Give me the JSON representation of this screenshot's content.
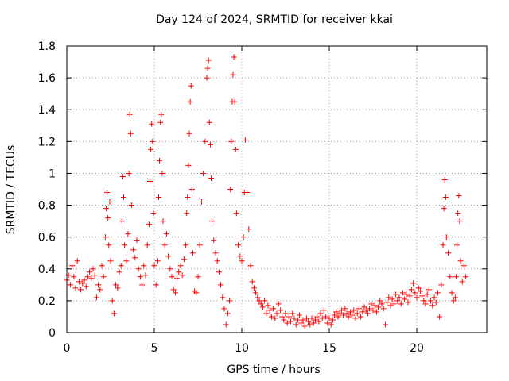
{
  "chart_data": {
    "type": "scatter",
    "title": "Day 124 of 2024, SRMTID for receiver kkai",
    "xlabel": "GPS time / hours",
    "ylabel": "SRMTID / TECUs",
    "xlim": [
      0,
      24
    ],
    "ylim": [
      0,
      1.8
    ],
    "x_ticks": [
      0,
      5,
      10,
      15,
      20
    ],
    "x_tick_labels": [
      "0",
      "5",
      "10",
      "15",
      "20"
    ],
    "y_ticks": [
      0,
      0.2,
      0.4,
      0.6,
      0.8,
      1,
      1.2,
      1.4,
      1.6,
      1.8
    ],
    "y_tick_labels": [
      "0",
      "0.2",
      "0.4",
      "0.6",
      "0.8",
      "1",
      "1.2",
      "1.4",
      "1.6",
      "1.8"
    ],
    "grid": true,
    "marker": "+",
    "color": "#ff0000",
    "series": [
      {
        "name": "SRMTID",
        "points": [
          [
            0.0,
            0.33
          ],
          [
            0.1,
            0.36
          ],
          [
            0.2,
            0.3
          ],
          [
            0.3,
            0.42
          ],
          [
            0.4,
            0.35
          ],
          [
            0.5,
            0.28
          ],
          [
            0.6,
            0.45
          ],
          [
            0.7,
            0.32
          ],
          [
            0.8,
            0.27
          ],
          [
            0.9,
            0.31
          ],
          [
            1.0,
            0.33
          ],
          [
            1.1,
            0.29
          ],
          [
            1.2,
            0.35
          ],
          [
            1.3,
            0.38
          ],
          [
            1.4,
            0.34
          ],
          [
            1.5,
            0.4
          ],
          [
            1.6,
            0.36
          ],
          [
            1.7,
            0.22
          ],
          [
            1.8,
            0.3
          ],
          [
            1.9,
            0.27
          ],
          [
            2.0,
            0.42
          ],
          [
            2.1,
            0.35
          ],
          [
            2.2,
            0.6
          ],
          [
            2.25,
            0.78
          ],
          [
            2.3,
            0.88
          ],
          [
            2.35,
            0.72
          ],
          [
            2.4,
            0.55
          ],
          [
            2.45,
            0.82
          ],
          [
            2.5,
            0.45
          ],
          [
            2.6,
            0.2
          ],
          [
            2.7,
            0.12
          ],
          [
            2.8,
            0.3
          ],
          [
            2.9,
            0.28
          ],
          [
            3.0,
            0.38
          ],
          [
            3.1,
            0.42
          ],
          [
            3.15,
            0.7
          ],
          [
            3.2,
            0.98
          ],
          [
            3.25,
            0.85
          ],
          [
            3.3,
            0.55
          ],
          [
            3.4,
            0.45
          ],
          [
            3.5,
            0.62
          ],
          [
            3.55,
            1.0
          ],
          [
            3.6,
            1.37
          ],
          [
            3.65,
            1.25
          ],
          [
            3.7,
            0.8
          ],
          [
            3.8,
            0.52
          ],
          [
            3.9,
            0.47
          ],
          [
            4.0,
            0.58
          ],
          [
            4.1,
            0.4
          ],
          [
            4.2,
            0.35
          ],
          [
            4.3,
            0.3
          ],
          [
            4.4,
            0.42
          ],
          [
            4.5,
            0.36
          ],
          [
            4.6,
            0.55
          ],
          [
            4.7,
            0.68
          ],
          [
            4.75,
            0.95
          ],
          [
            4.8,
            1.15
          ],
          [
            4.85,
            1.31
          ],
          [
            4.9,
            1.2
          ],
          [
            4.95,
            0.75
          ],
          [
            5.0,
            0.42
          ],
          [
            5.1,
            0.3
          ],
          [
            5.2,
            0.45
          ],
          [
            5.25,
            0.85
          ],
          [
            5.3,
            1.08
          ],
          [
            5.35,
            1.32
          ],
          [
            5.4,
            1.37
          ],
          [
            5.45,
            1.0
          ],
          [
            5.5,
            0.7
          ],
          [
            5.6,
            0.55
          ],
          [
            5.7,
            0.62
          ],
          [
            5.8,
            0.48
          ],
          [
            5.9,
            0.4
          ],
          [
            6.0,
            0.35
          ],
          [
            6.1,
            0.27
          ],
          [
            6.2,
            0.25
          ],
          [
            6.3,
            0.34
          ],
          [
            6.4,
            0.38
          ],
          [
            6.5,
            0.42
          ],
          [
            6.6,
            0.36
          ],
          [
            6.7,
            0.46
          ],
          [
            6.8,
            0.55
          ],
          [
            6.85,
            0.75
          ],
          [
            6.9,
            0.85
          ],
          [
            6.95,
            1.05
          ],
          [
            7.0,
            1.25
          ],
          [
            7.05,
            1.45
          ],
          [
            7.1,
            1.55
          ],
          [
            7.15,
            0.9
          ],
          [
            7.2,
            0.5
          ],
          [
            7.3,
            0.26
          ],
          [
            7.4,
            0.25
          ],
          [
            7.5,
            0.35
          ],
          [
            7.6,
            0.55
          ],
          [
            7.7,
            0.82
          ],
          [
            7.8,
            1.0
          ],
          [
            7.9,
            1.2
          ],
          [
            8.0,
            1.6
          ],
          [
            8.05,
            1.66
          ],
          [
            8.1,
            1.71
          ],
          [
            8.15,
            1.32
          ],
          [
            8.2,
            1.18
          ],
          [
            8.25,
            0.97
          ],
          [
            8.3,
            0.7
          ],
          [
            8.4,
            0.58
          ],
          [
            8.5,
            0.5
          ],
          [
            8.6,
            0.45
          ],
          [
            8.7,
            0.38
          ],
          [
            8.8,
            0.3
          ],
          [
            8.9,
            0.22
          ],
          [
            9.0,
            0.15
          ],
          [
            9.1,
            0.05
          ],
          [
            9.2,
            0.12
          ],
          [
            9.3,
            0.2
          ],
          [
            9.35,
            0.9
          ],
          [
            9.4,
            1.2
          ],
          [
            9.45,
            1.45
          ],
          [
            9.5,
            1.62
          ],
          [
            9.55,
            1.73
          ],
          [
            9.6,
            1.45
          ],
          [
            9.65,
            1.15
          ],
          [
            9.7,
            0.75
          ],
          [
            9.8,
            0.55
          ],
          [
            9.9,
            0.48
          ],
          [
            10.0,
            0.45
          ],
          [
            10.1,
            0.6
          ],
          [
            10.15,
            0.88
          ],
          [
            10.2,
            1.21
          ],
          [
            10.3,
            0.88
          ],
          [
            10.4,
            0.65
          ],
          [
            10.5,
            0.42
          ],
          [
            10.6,
            0.32
          ],
          [
            10.7,
            0.28
          ],
          [
            10.8,
            0.25
          ],
          [
            10.9,
            0.22
          ],
          [
            11.0,
            0.2
          ],
          [
            11.1,
            0.18
          ],
          [
            11.2,
            0.16
          ],
          [
            11.3,
            0.2
          ],
          [
            11.4,
            0.12
          ],
          [
            11.5,
            0.17
          ],
          [
            11.6,
            0.14
          ],
          [
            11.7,
            0.1
          ],
          [
            11.8,
            0.15
          ],
          [
            11.9,
            0.09
          ],
          [
            12.0,
            0.12
          ],
          [
            12.1,
            0.18
          ],
          [
            12.2,
            0.14
          ],
          [
            12.3,
            0.1
          ],
          [
            12.4,
            0.08
          ],
          [
            12.5,
            0.12
          ],
          [
            12.6,
            0.06
          ],
          [
            12.7,
            0.1
          ],
          [
            12.8,
            0.07
          ],
          [
            12.9,
            0.12
          ],
          [
            13.0,
            0.09
          ],
          [
            13.1,
            0.05
          ],
          [
            13.2,
            0.08
          ],
          [
            13.3,
            0.11
          ],
          [
            13.4,
            0.06
          ],
          [
            13.5,
            0.08
          ],
          [
            13.6,
            0.04
          ],
          [
            13.7,
            0.09
          ],
          [
            13.8,
            0.07
          ],
          [
            13.9,
            0.05
          ],
          [
            14.0,
            0.09
          ],
          [
            14.1,
            0.06
          ],
          [
            14.2,
            0.08
          ],
          [
            14.3,
            0.1
          ],
          [
            14.4,
            0.07
          ],
          [
            14.5,
            0.12
          ],
          [
            14.6,
            0.09
          ],
          [
            14.7,
            0.14
          ],
          [
            14.8,
            0.1
          ],
          [
            14.9,
            0.06
          ],
          [
            15.0,
            0.09
          ],
          [
            15.1,
            0.05
          ],
          [
            15.2,
            0.08
          ],
          [
            15.3,
            0.11
          ],
          [
            15.4,
            0.13
          ],
          [
            15.5,
            0.1
          ],
          [
            15.6,
            0.12
          ],
          [
            15.7,
            0.14
          ],
          [
            15.8,
            0.11
          ],
          [
            15.9,
            0.15
          ],
          [
            16.0,
            0.12
          ],
          [
            16.1,
            0.1
          ],
          [
            16.2,
            0.13
          ],
          [
            16.3,
            0.11
          ],
          [
            16.4,
            0.14
          ],
          [
            16.5,
            0.09
          ],
          [
            16.6,
            0.12
          ],
          [
            16.7,
            0.15
          ],
          [
            16.8,
            0.1
          ],
          [
            16.9,
            0.13
          ],
          [
            17.0,
            0.16
          ],
          [
            17.1,
            0.14
          ],
          [
            17.2,
            0.12
          ],
          [
            17.3,
            0.15
          ],
          [
            17.4,
            0.18
          ],
          [
            17.5,
            0.14
          ],
          [
            17.6,
            0.17
          ],
          [
            17.7,
            0.13
          ],
          [
            17.8,
            0.16
          ],
          [
            17.9,
            0.2
          ],
          [
            18.0,
            0.18
          ],
          [
            18.1,
            0.15
          ],
          [
            18.2,
            0.05
          ],
          [
            18.3,
            0.19
          ],
          [
            18.4,
            0.22
          ],
          [
            18.5,
            0.17
          ],
          [
            18.6,
            0.21
          ],
          [
            18.7,
            0.18
          ],
          [
            18.8,
            0.24
          ],
          [
            18.9,
            0.2
          ],
          [
            19.0,
            0.22
          ],
          [
            19.1,
            0.18
          ],
          [
            19.2,
            0.25
          ],
          [
            19.3,
            0.21
          ],
          [
            19.4,
            0.24
          ],
          [
            19.5,
            0.19
          ],
          [
            19.6,
            0.23
          ],
          [
            19.7,
            0.27
          ],
          [
            19.8,
            0.31
          ],
          [
            19.9,
            0.25
          ],
          [
            20.0,
            0.22
          ],
          [
            20.1,
            0.28
          ],
          [
            20.2,
            0.26
          ],
          [
            20.3,
            0.23
          ],
          [
            20.4,
            0.2
          ],
          [
            20.5,
            0.18
          ],
          [
            20.6,
            0.24
          ],
          [
            20.7,
            0.27
          ],
          [
            20.8,
            0.2
          ],
          [
            20.9,
            0.17
          ],
          [
            21.0,
            0.22
          ],
          [
            21.1,
            0.19
          ],
          [
            21.2,
            0.25
          ],
          [
            21.3,
            0.1
          ],
          [
            21.4,
            0.3
          ],
          [
            21.5,
            0.55
          ],
          [
            21.55,
            0.78
          ],
          [
            21.6,
            0.96
          ],
          [
            21.65,
            0.85
          ],
          [
            21.7,
            0.6
          ],
          [
            21.8,
            0.5
          ],
          [
            21.9,
            0.35
          ],
          [
            22.0,
            0.25
          ],
          [
            22.1,
            0.2
          ],
          [
            22.2,
            0.22
          ],
          [
            22.25,
            0.35
          ],
          [
            22.3,
            0.55
          ],
          [
            22.35,
            0.75
          ],
          [
            22.4,
            0.86
          ],
          [
            22.45,
            0.7
          ],
          [
            22.5,
            0.45
          ],
          [
            22.6,
            0.32
          ],
          [
            22.7,
            0.42
          ],
          [
            22.8,
            0.35
          ]
        ]
      }
    ]
  }
}
